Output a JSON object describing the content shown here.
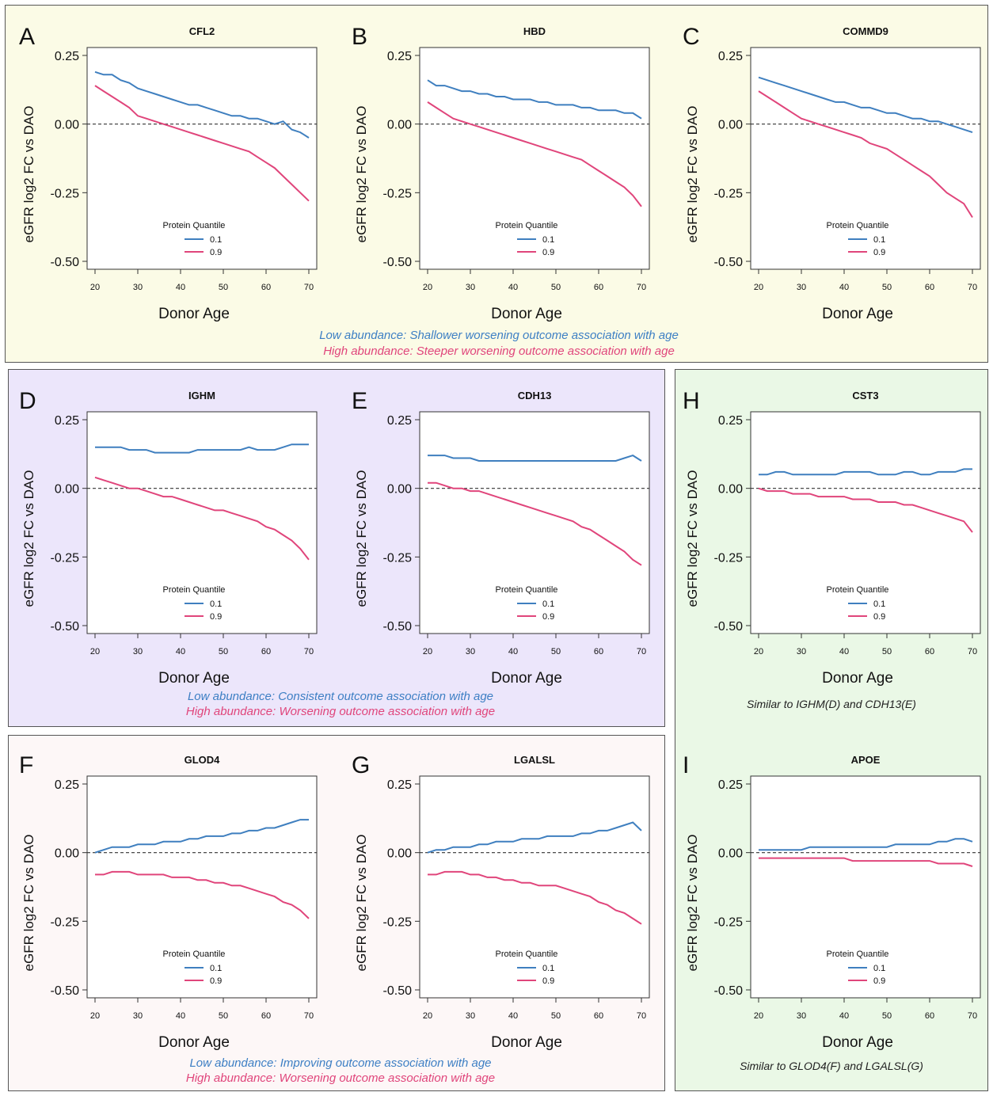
{
  "colors": {
    "low": "#3f7fbf",
    "high": "#e0457b",
    "box_yellow": "#fbfbe6",
    "box_purple": "#ece6fb",
    "box_pink": "#fdf7f7",
    "box_green": "#eaf8e6",
    "caption_low": "#3d7fc4",
    "caption_high": "#e0457b"
  },
  "captions": {
    "abc_low": "Low abundance: Shallower worsening outcome association with age",
    "abc_high": "High abundance: Steeper worsening outcome association with age",
    "de_low": "Low abundance: Consistent outcome association with age",
    "de_high": "High abundance: Worsening outcome association with age",
    "fg_low": "Low abundance: Improving outcome association with age",
    "fg_high": "High abundance: Worsening outcome association with age",
    "h_note": "Similar to IGHM(D) and CDH13(E)",
    "i_note": "Similar to GLOD4(F) and LGALSL(G)"
  },
  "chart_data": [
    {
      "letter": "A",
      "title": "CFL2",
      "type": "line",
      "xlabel": "Donor Age",
      "ylabel": "eGFR log2 FC vs DAO",
      "xlim": [
        20,
        70
      ],
      "ylim": [
        -0.5,
        0.25
      ],
      "xticks": [
        "20",
        "30",
        "40",
        "50",
        "60",
        "70"
      ],
      "yticks": [
        "0.25",
        "0.00",
        "-0.25",
        "-0.50"
      ],
      "reference_line": 0,
      "legend_title": "Protein Quantile",
      "x": [
        20,
        22,
        24,
        26,
        28,
        30,
        32,
        34,
        36,
        38,
        40,
        42,
        44,
        46,
        48,
        50,
        52,
        54,
        56,
        58,
        60,
        62,
        64,
        66,
        68,
        70
      ],
      "series": [
        {
          "name": "0.1",
          "values": [
            0.19,
            0.18,
            0.18,
            0.16,
            0.15,
            0.13,
            0.12,
            0.11,
            0.1,
            0.09,
            0.08,
            0.07,
            0.07,
            0.06,
            0.05,
            0.04,
            0.03,
            0.03,
            0.02,
            0.02,
            0.01,
            0.0,
            0.01,
            -0.02,
            -0.03,
            -0.05
          ]
        },
        {
          "name": "0.9",
          "values": [
            0.14,
            0.12,
            0.1,
            0.08,
            0.06,
            0.03,
            0.02,
            0.01,
            0.0,
            -0.01,
            -0.02,
            -0.03,
            -0.04,
            -0.05,
            -0.06,
            -0.07,
            -0.08,
            -0.09,
            -0.1,
            -0.12,
            -0.14,
            -0.16,
            -0.19,
            -0.22,
            -0.25,
            -0.28
          ]
        }
      ]
    },
    {
      "letter": "B",
      "title": "HBD",
      "type": "line",
      "xlabel": "Donor Age",
      "ylabel": "eGFR log2 FC vs DAO",
      "xlim": [
        20,
        70
      ],
      "ylim": [
        -0.5,
        0.25
      ],
      "xticks": [
        "20",
        "30",
        "40",
        "50",
        "60",
        "70"
      ],
      "yticks": [
        "0.25",
        "0.00",
        "-0.25",
        "-0.50"
      ],
      "reference_line": 0,
      "legend_title": "Protein Quantile",
      "x": [
        20,
        22,
        24,
        26,
        28,
        30,
        32,
        34,
        36,
        38,
        40,
        42,
        44,
        46,
        48,
        50,
        52,
        54,
        56,
        58,
        60,
        62,
        64,
        66,
        68,
        70
      ],
      "series": [
        {
          "name": "0.1",
          "values": [
            0.16,
            0.14,
            0.14,
            0.13,
            0.12,
            0.12,
            0.11,
            0.11,
            0.1,
            0.1,
            0.09,
            0.09,
            0.09,
            0.08,
            0.08,
            0.07,
            0.07,
            0.07,
            0.06,
            0.06,
            0.05,
            0.05,
            0.05,
            0.04,
            0.04,
            0.02
          ]
        },
        {
          "name": "0.9",
          "values": [
            0.08,
            0.06,
            0.04,
            0.02,
            0.01,
            0.0,
            -0.01,
            -0.02,
            -0.03,
            -0.04,
            -0.05,
            -0.06,
            -0.07,
            -0.08,
            -0.09,
            -0.1,
            -0.11,
            -0.12,
            -0.13,
            -0.15,
            -0.17,
            -0.19,
            -0.21,
            -0.23,
            -0.26,
            -0.3
          ]
        }
      ]
    },
    {
      "letter": "C",
      "title": "COMMD9",
      "type": "line",
      "xlabel": "Donor Age",
      "ylabel": "eGFR log2 FC vs DAO",
      "xlim": [
        20,
        70
      ],
      "ylim": [
        -0.5,
        0.25
      ],
      "xticks": [
        "20",
        "30",
        "40",
        "50",
        "60",
        "70"
      ],
      "yticks": [
        "0.25",
        "0.00",
        "-0.25",
        "-0.50"
      ],
      "reference_line": 0,
      "legend_title": "Protein Quantile",
      "x": [
        20,
        22,
        24,
        26,
        28,
        30,
        32,
        34,
        36,
        38,
        40,
        42,
        44,
        46,
        48,
        50,
        52,
        54,
        56,
        58,
        60,
        62,
        64,
        66,
        68,
        70
      ],
      "series": [
        {
          "name": "0.1",
          "values": [
            0.17,
            0.16,
            0.15,
            0.14,
            0.13,
            0.12,
            0.11,
            0.1,
            0.09,
            0.08,
            0.08,
            0.07,
            0.06,
            0.06,
            0.05,
            0.04,
            0.04,
            0.03,
            0.02,
            0.02,
            0.01,
            0.01,
            0.0,
            -0.01,
            -0.02,
            -0.03
          ]
        },
        {
          "name": "0.9",
          "values": [
            0.12,
            0.1,
            0.08,
            0.06,
            0.04,
            0.02,
            0.01,
            0.0,
            -0.01,
            -0.02,
            -0.03,
            -0.04,
            -0.05,
            -0.07,
            -0.08,
            -0.09,
            -0.11,
            -0.13,
            -0.15,
            -0.17,
            -0.19,
            -0.22,
            -0.25,
            -0.27,
            -0.29,
            -0.34
          ]
        }
      ]
    },
    {
      "letter": "D",
      "title": "IGHM",
      "type": "line",
      "xlabel": "Donor Age",
      "ylabel": "eGFR log2 FC vs DAO",
      "xlim": [
        20,
        70
      ],
      "ylim": [
        -0.5,
        0.25
      ],
      "xticks": [
        "20",
        "30",
        "40",
        "50",
        "60",
        "70"
      ],
      "yticks": [
        "0.25",
        "0.00",
        "-0.25",
        "-0.50"
      ],
      "reference_line": 0,
      "legend_title": "Protein Quantile",
      "x": [
        20,
        22,
        24,
        26,
        28,
        30,
        32,
        34,
        36,
        38,
        40,
        42,
        44,
        46,
        48,
        50,
        52,
        54,
        56,
        58,
        60,
        62,
        64,
        66,
        68,
        70
      ],
      "series": [
        {
          "name": "0.1",
          "values": [
            0.15,
            0.15,
            0.15,
            0.15,
            0.14,
            0.14,
            0.14,
            0.13,
            0.13,
            0.13,
            0.13,
            0.13,
            0.14,
            0.14,
            0.14,
            0.14,
            0.14,
            0.14,
            0.15,
            0.14,
            0.14,
            0.14,
            0.15,
            0.16,
            0.16,
            0.16
          ]
        },
        {
          "name": "0.9",
          "values": [
            0.04,
            0.03,
            0.02,
            0.01,
            0.0,
            0.0,
            -0.01,
            -0.02,
            -0.03,
            -0.03,
            -0.04,
            -0.05,
            -0.06,
            -0.07,
            -0.08,
            -0.08,
            -0.09,
            -0.1,
            -0.11,
            -0.12,
            -0.14,
            -0.15,
            -0.17,
            -0.19,
            -0.22,
            -0.26
          ]
        }
      ]
    },
    {
      "letter": "E",
      "title": "CDH13",
      "type": "line",
      "xlabel": "Donor Age",
      "ylabel": "eGFR log2 FC vs DAO",
      "xlim": [
        20,
        70
      ],
      "ylim": [
        -0.5,
        0.25
      ],
      "xticks": [
        "20",
        "30",
        "40",
        "50",
        "60",
        "70"
      ],
      "yticks": [
        "0.25",
        "0.00",
        "-0.25",
        "-0.50"
      ],
      "reference_line": 0,
      "legend_title": "Protein Quantile",
      "x": [
        20,
        22,
        24,
        26,
        28,
        30,
        32,
        34,
        36,
        38,
        40,
        42,
        44,
        46,
        48,
        50,
        52,
        54,
        56,
        58,
        60,
        62,
        64,
        66,
        68,
        70
      ],
      "series": [
        {
          "name": "0.1",
          "values": [
            0.12,
            0.12,
            0.12,
            0.11,
            0.11,
            0.11,
            0.1,
            0.1,
            0.1,
            0.1,
            0.1,
            0.1,
            0.1,
            0.1,
            0.1,
            0.1,
            0.1,
            0.1,
            0.1,
            0.1,
            0.1,
            0.1,
            0.1,
            0.11,
            0.12,
            0.1
          ]
        },
        {
          "name": "0.9",
          "values": [
            0.02,
            0.02,
            0.01,
            0.0,
            0.0,
            -0.01,
            -0.01,
            -0.02,
            -0.03,
            -0.04,
            -0.05,
            -0.06,
            -0.07,
            -0.08,
            -0.09,
            -0.1,
            -0.11,
            -0.12,
            -0.14,
            -0.15,
            -0.17,
            -0.19,
            -0.21,
            -0.23,
            -0.26,
            -0.28
          ]
        }
      ]
    },
    {
      "letter": "F",
      "title": "GLOD4",
      "type": "line",
      "xlabel": "Donor Age",
      "ylabel": "eGFR log2 FC vs DAO",
      "xlim": [
        20,
        70
      ],
      "ylim": [
        -0.5,
        0.25
      ],
      "xticks": [
        "20",
        "30",
        "40",
        "50",
        "60",
        "70"
      ],
      "yticks": [
        "0.25",
        "0.00",
        "-0.25",
        "-0.50"
      ],
      "reference_line": 0,
      "legend_title": "Protein Quantile",
      "x": [
        20,
        22,
        24,
        26,
        28,
        30,
        32,
        34,
        36,
        38,
        40,
        42,
        44,
        46,
        48,
        50,
        52,
        54,
        56,
        58,
        60,
        62,
        64,
        66,
        68,
        70
      ],
      "series": [
        {
          "name": "0.1",
          "values": [
            0.0,
            0.01,
            0.02,
            0.02,
            0.02,
            0.03,
            0.03,
            0.03,
            0.04,
            0.04,
            0.04,
            0.05,
            0.05,
            0.06,
            0.06,
            0.06,
            0.07,
            0.07,
            0.08,
            0.08,
            0.09,
            0.09,
            0.1,
            0.11,
            0.12,
            0.12
          ]
        },
        {
          "name": "0.9",
          "values": [
            -0.08,
            -0.08,
            -0.07,
            -0.07,
            -0.07,
            -0.08,
            -0.08,
            -0.08,
            -0.08,
            -0.09,
            -0.09,
            -0.09,
            -0.1,
            -0.1,
            -0.11,
            -0.11,
            -0.12,
            -0.12,
            -0.13,
            -0.14,
            -0.15,
            -0.16,
            -0.18,
            -0.19,
            -0.21,
            -0.24
          ]
        }
      ]
    },
    {
      "letter": "G",
      "title": "LGALSL",
      "type": "line",
      "xlabel": "Donor Age",
      "ylabel": "eGFR log2 FC vs DAO",
      "xlim": [
        20,
        70
      ],
      "ylim": [
        -0.5,
        0.25
      ],
      "xticks": [
        "20",
        "30",
        "40",
        "50",
        "60",
        "70"
      ],
      "yticks": [
        "0.25",
        "0.00",
        "-0.25",
        "-0.50"
      ],
      "reference_line": 0,
      "legend_title": "Protein Quantile",
      "x": [
        20,
        22,
        24,
        26,
        28,
        30,
        32,
        34,
        36,
        38,
        40,
        42,
        44,
        46,
        48,
        50,
        52,
        54,
        56,
        58,
        60,
        62,
        64,
        66,
        68,
        70
      ],
      "series": [
        {
          "name": "0.1",
          "values": [
            0.0,
            0.01,
            0.01,
            0.02,
            0.02,
            0.02,
            0.03,
            0.03,
            0.04,
            0.04,
            0.04,
            0.05,
            0.05,
            0.05,
            0.06,
            0.06,
            0.06,
            0.06,
            0.07,
            0.07,
            0.08,
            0.08,
            0.09,
            0.1,
            0.11,
            0.08
          ]
        },
        {
          "name": "0.9",
          "values": [
            -0.08,
            -0.08,
            -0.07,
            -0.07,
            -0.07,
            -0.08,
            -0.08,
            -0.09,
            -0.09,
            -0.1,
            -0.1,
            -0.11,
            -0.11,
            -0.12,
            -0.12,
            -0.12,
            -0.13,
            -0.14,
            -0.15,
            -0.16,
            -0.18,
            -0.19,
            -0.21,
            -0.22,
            -0.24,
            -0.26
          ]
        }
      ]
    },
    {
      "letter": "H",
      "title": "CST3",
      "type": "line",
      "xlabel": "Donor Age",
      "ylabel": "eGFR log2 FC vs DAO",
      "xlim": [
        20,
        70
      ],
      "ylim": [
        -0.5,
        0.25
      ],
      "xticks": [
        "20",
        "30",
        "40",
        "50",
        "60",
        "70"
      ],
      "yticks": [
        "0.25",
        "0.00",
        "-0.25",
        "-0.50"
      ],
      "reference_line": 0,
      "legend_title": "Protein Quantile",
      "x": [
        20,
        22,
        24,
        26,
        28,
        30,
        32,
        34,
        36,
        38,
        40,
        42,
        44,
        46,
        48,
        50,
        52,
        54,
        56,
        58,
        60,
        62,
        64,
        66,
        68,
        70
      ],
      "series": [
        {
          "name": "0.1",
          "values": [
            0.05,
            0.05,
            0.06,
            0.06,
            0.05,
            0.05,
            0.05,
            0.05,
            0.05,
            0.05,
            0.06,
            0.06,
            0.06,
            0.06,
            0.05,
            0.05,
            0.05,
            0.06,
            0.06,
            0.05,
            0.05,
            0.06,
            0.06,
            0.06,
            0.07,
            0.07
          ]
        },
        {
          "name": "0.9",
          "values": [
            0.0,
            -0.01,
            -0.01,
            -0.01,
            -0.02,
            -0.02,
            -0.02,
            -0.03,
            -0.03,
            -0.03,
            -0.03,
            -0.04,
            -0.04,
            -0.04,
            -0.05,
            -0.05,
            -0.05,
            -0.06,
            -0.06,
            -0.07,
            -0.08,
            -0.09,
            -0.1,
            -0.11,
            -0.12,
            -0.16
          ]
        }
      ]
    },
    {
      "letter": "I",
      "title": "APOE",
      "type": "line",
      "xlabel": "Donor Age",
      "ylabel": "eGFR log2 FC vs DAO",
      "xlim": [
        20,
        70
      ],
      "ylim": [
        -0.5,
        0.25
      ],
      "xticks": [
        "20",
        "30",
        "40",
        "50",
        "60",
        "70"
      ],
      "yticks": [
        "0.25",
        "0.00",
        "-0.25",
        "-0.50"
      ],
      "reference_line": 0,
      "legend_title": "Protein Quantile",
      "x": [
        20,
        22,
        24,
        26,
        28,
        30,
        32,
        34,
        36,
        38,
        40,
        42,
        44,
        46,
        48,
        50,
        52,
        54,
        56,
        58,
        60,
        62,
        64,
        66,
        68,
        70
      ],
      "series": [
        {
          "name": "0.1",
          "values": [
            0.01,
            0.01,
            0.01,
            0.01,
            0.01,
            0.01,
            0.02,
            0.02,
            0.02,
            0.02,
            0.02,
            0.02,
            0.02,
            0.02,
            0.02,
            0.02,
            0.03,
            0.03,
            0.03,
            0.03,
            0.03,
            0.04,
            0.04,
            0.05,
            0.05,
            0.04
          ]
        },
        {
          "name": "0.9",
          "values": [
            -0.02,
            -0.02,
            -0.02,
            -0.02,
            -0.02,
            -0.02,
            -0.02,
            -0.02,
            -0.02,
            -0.02,
            -0.02,
            -0.03,
            -0.03,
            -0.03,
            -0.03,
            -0.03,
            -0.03,
            -0.03,
            -0.03,
            -0.03,
            -0.03,
            -0.04,
            -0.04,
            -0.04,
            -0.04,
            -0.05
          ]
        }
      ]
    }
  ]
}
